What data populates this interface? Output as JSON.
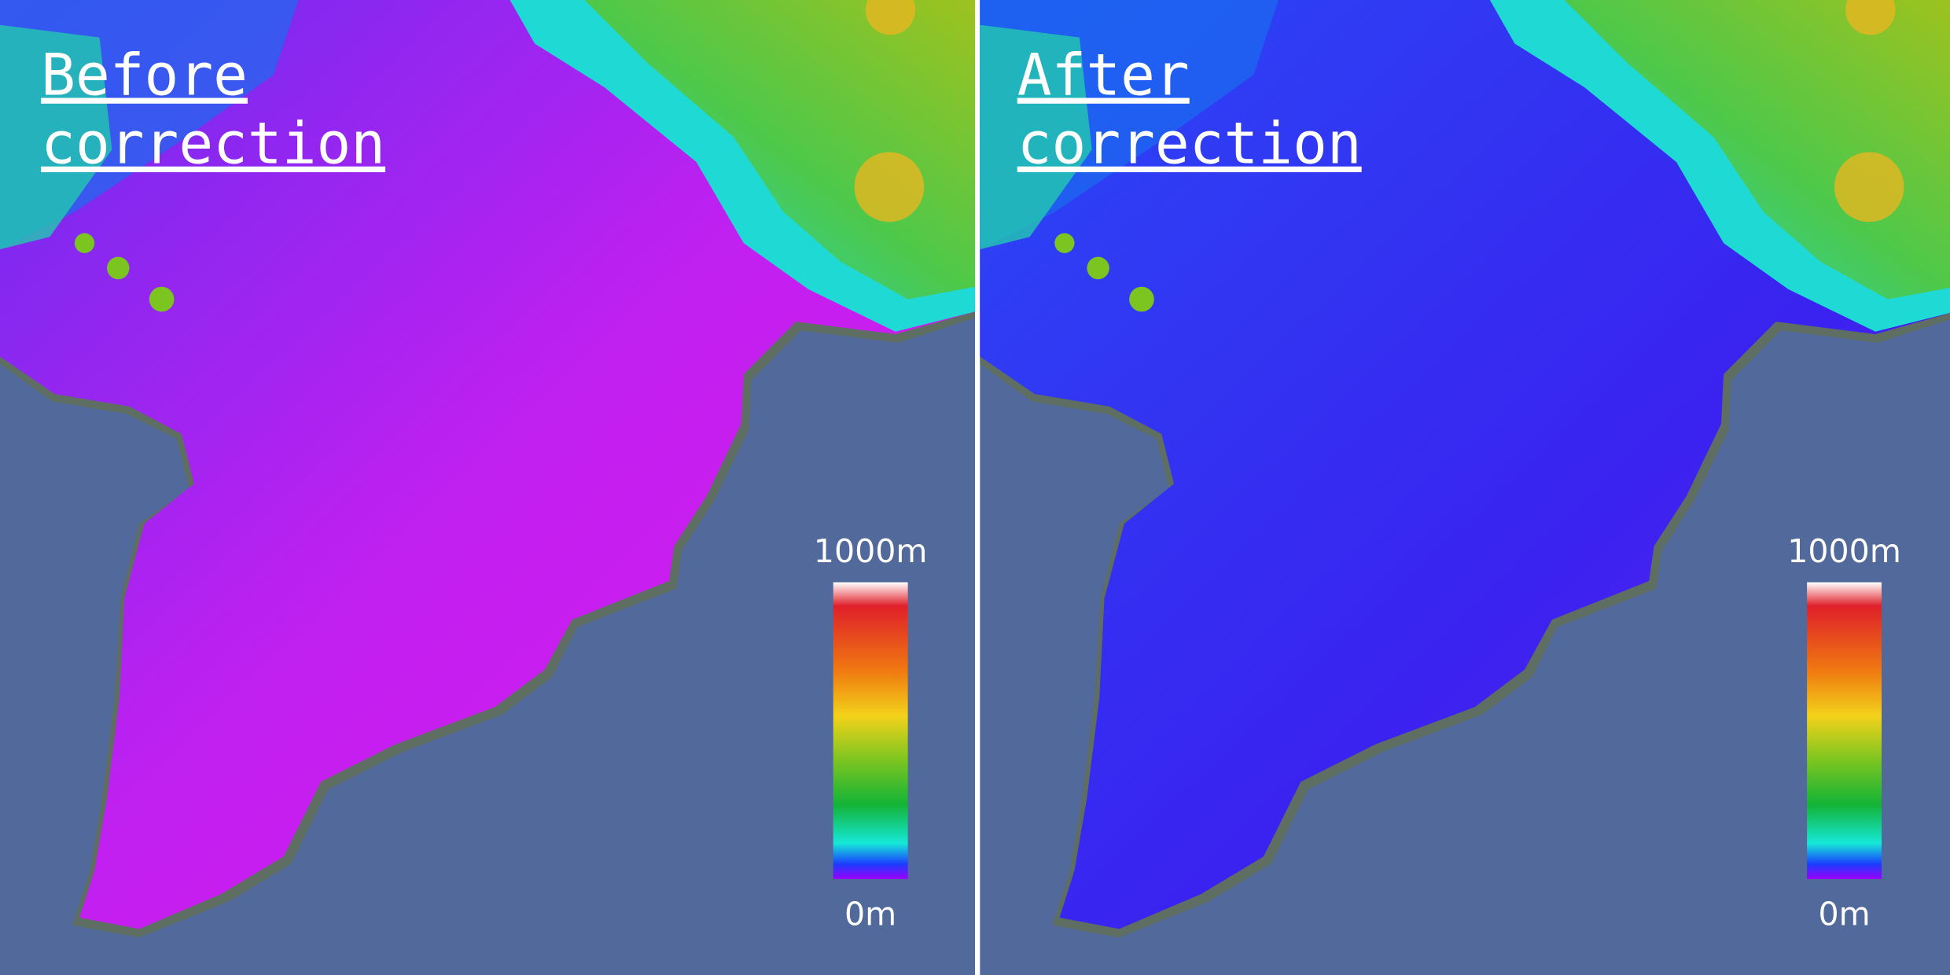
{
  "panels": [
    {
      "title_lines": [
        "Before",
        "correction"
      ],
      "legend": {
        "max_label": "1000m",
        "min_label": "0m"
      }
    },
    {
      "title_lines": [
        "After",
        "correction"
      ],
      "legend": {
        "max_label": "1000m",
        "min_label": "0m"
      }
    }
  ]
}
